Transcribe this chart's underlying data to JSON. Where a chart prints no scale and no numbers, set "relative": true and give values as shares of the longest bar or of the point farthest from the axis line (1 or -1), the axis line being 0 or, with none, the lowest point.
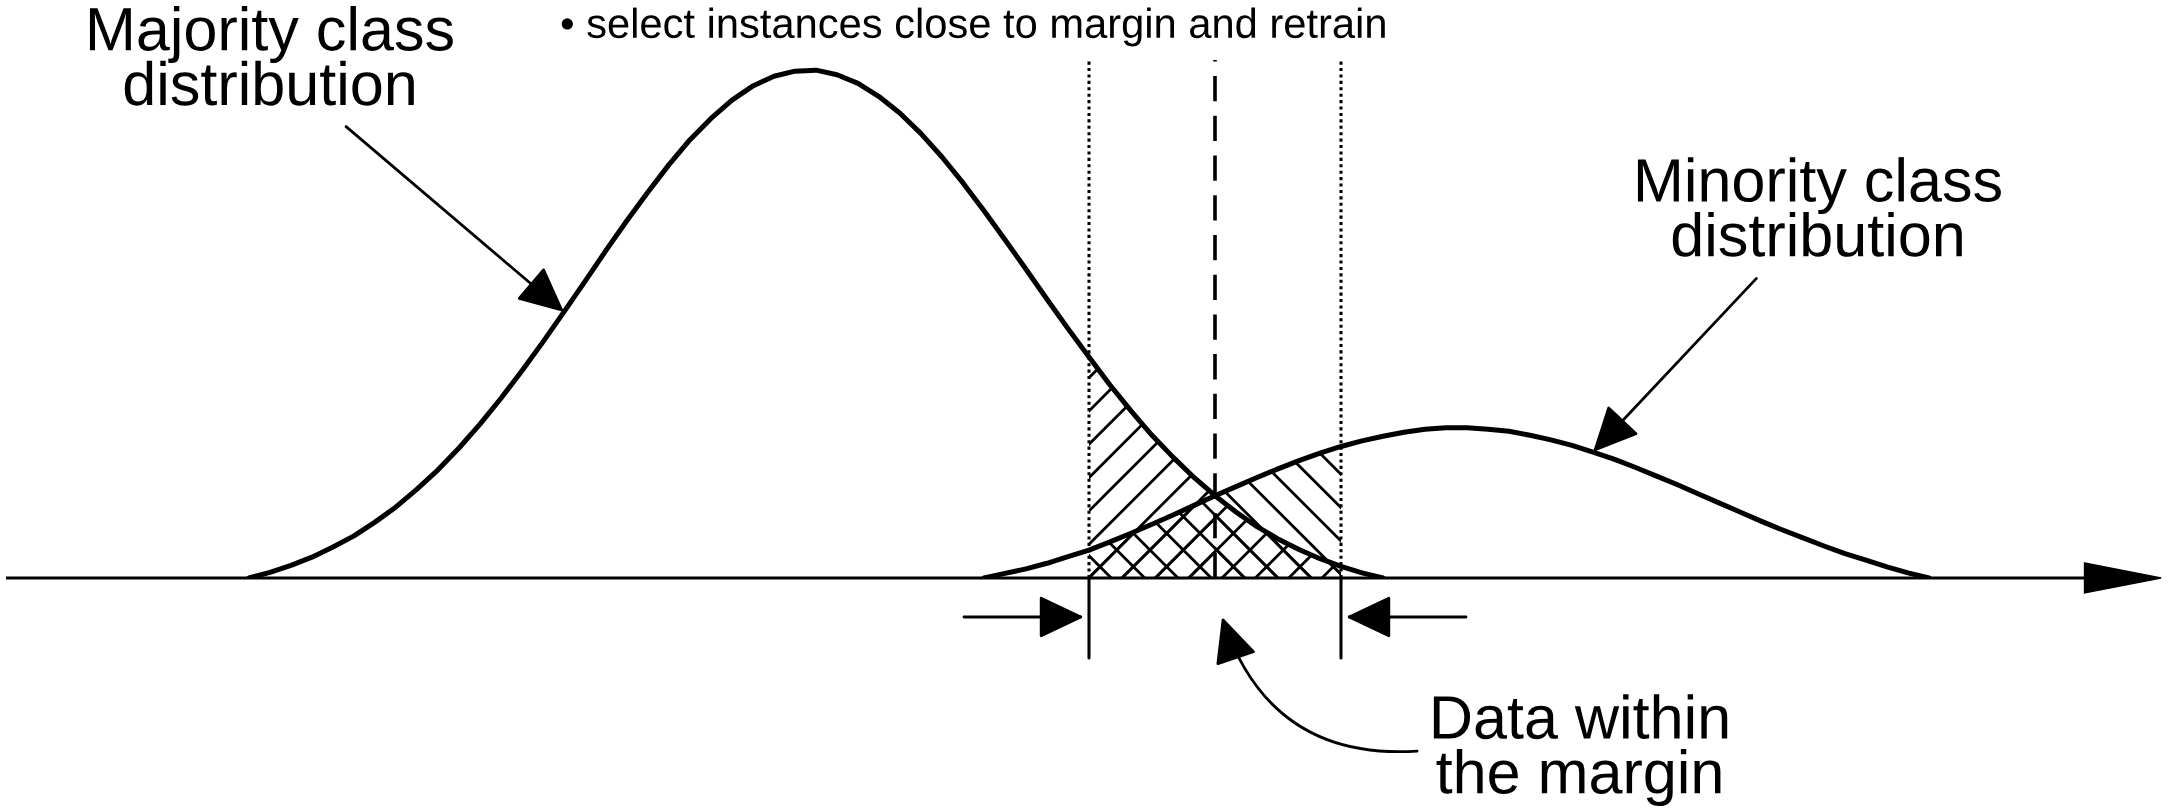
{
  "chart_data": {
    "type": "line",
    "relative": true,
    "title": "• select instances close to margin and retrain",
    "annotations": [
      "Majority class\ndistribution",
      "Minority class\ndistribution",
      "Data within\nthe margin"
    ],
    "categories": [
      null,
      null,
      null,
      null,
      null,
      null,
      null,
      null,
      null,
      null,
      null,
      null,
      null,
      null,
      null,
      null,
      null,
      null,
      null,
      null,
      null,
      null,
      null,
      null,
      null,
      null,
      null,
      null,
      null,
      null,
      null,
      null,
      null,
      null,
      null,
      null,
      null,
      null,
      null,
      null,
      null,
      null,
      null,
      null,
      null,
      null,
      null,
      null,
      null,
      null,
      null,
      null,
      null,
      null,
      null,
      null,
      null,
      null,
      null,
      null,
      null,
      null,
      null,
      null,
      null,
      null,
      null,
      null,
      null,
      null,
      null,
      null,
      null,
      null,
      null,
      null,
      null,
      null,
      null,
      null,
      null,
      null,
      null,
      null,
      null,
      null,
      null,
      null,
      null,
      null,
      null,
      null,
      null,
      null,
      null,
      null,
      null,
      null,
      null
    ],
    "series": [
      {
        "color": "#000000",
        "values": [
          null,
          null,
          null,
          null,
          null,
          null,
          null,
          null,
          null,
          null,
          null,
          0,
          0.011,
          0.025,
          0.041,
          0.061,
          0.083,
          0.11,
          0.14,
          0.175,
          0.213,
          0.256,
          0.303,
          0.354,
          0.408,
          0.465,
          0.524,
          0.584,
          0.645,
          0.704,
          0.76,
          0.814,
          0.863,
          0.905,
          0.941,
          0.969,
          0.988,
          0.998,
          1,
          0.991,
          0.974,
          0.948,
          0.915,
          0.875,
          0.829,
          0.778,
          0.723,
          0.666,
          0.608,
          0.549,
          0.491,
          0.435,
          0.38,
          0.329,
          0.281,
          0.238,
          0.198,
          0.162,
          0.13,
          0.101,
          0.077,
          0.056,
          0.038,
          0.023,
          0.01,
          0,
          null,
          null,
          null,
          null,
          null,
          null,
          null,
          null,
          null,
          null,
          null,
          null,
          null,
          null,
          null,
          null,
          null,
          null,
          null,
          null,
          null,
          null,
          null,
          null,
          null,
          null,
          null,
          null,
          null,
          null,
          null,
          null,
          null
        ]
      },
      {
        "color": "#000000",
        "values": [
          null,
          null,
          null,
          null,
          null,
          null,
          null,
          null,
          null,
          null,
          null,
          null,
          null,
          null,
          null,
          null,
          null,
          null,
          null,
          null,
          null,
          null,
          null,
          null,
          null,
          null,
          null,
          null,
          null,
          null,
          null,
          null,
          null,
          null,
          null,
          null,
          null,
          null,
          null,
          null,
          null,
          null,
          null,
          null,
          null,
          null,
          0,
          0.009,
          0.018,
          0.029,
          0.042,
          0.055,
          0.071,
          0.088,
          0.106,
          0.124,
          0.143,
          0.162,
          0.18,
          0.198,
          0.215,
          0.231,
          0.246,
          0.259,
          0.27,
          0.279,
          0.287,
          0.293,
          0.296,
          0.296,
          0.293,
          0.289,
          0.281,
          0.272,
          0.261,
          0.248,
          0.234,
          0.218,
          0.201,
          0.184,
          0.166,
          0.148,
          0.13,
          0.112,
          0.095,
          0.079,
          0.063,
          0.048,
          0.035,
          0.022,
          0.01,
          0,
          null,
          null,
          null,
          null,
          null,
          null,
          null
        ]
      },
      {
        "type": "area",
        "color": "#000000",
        "values": [
          null,
          null,
          null,
          null,
          null,
          null,
          null,
          null,
          null,
          null,
          null,
          null,
          null,
          null,
          null,
          null,
          null,
          null,
          null,
          null,
          null,
          null,
          null,
          null,
          null,
          null,
          null,
          null,
          null,
          null,
          null,
          null,
          null,
          null,
          null,
          null,
          null,
          null,
          null,
          null,
          null,
          null,
          null,
          null,
          null,
          null,
          null,
          null,
          null,
          null,
          null,
          0.435,
          0.38,
          0.329,
          0.281,
          0.238,
          0.198,
          0.162,
          null,
          null,
          null,
          null,
          null,
          null,
          null,
          null,
          null,
          null,
          null,
          null,
          null,
          null,
          null,
          null,
          null,
          null,
          null,
          null,
          null,
          null,
          null,
          null,
          null,
          null,
          null,
          null,
          null,
          null,
          null,
          null,
          null,
          null,
          null,
          null,
          null,
          null,
          null,
          null,
          null
        ]
      },
      {
        "type": "area",
        "color": "#000000",
        "values": [
          null,
          null,
          null,
          null,
          null,
          null,
          null,
          null,
          null,
          null,
          null,
          null,
          null,
          null,
          null,
          null,
          null,
          null,
          null,
          null,
          null,
          null,
          null,
          null,
          null,
          null,
          null,
          null,
          null,
          null,
          null,
          null,
          null,
          null,
          null,
          null,
          null,
          null,
          null,
          null,
          null,
          null,
          null,
          null,
          null,
          null,
          null,
          null,
          null,
          null,
          null,
          null,
          null,
          null,
          null,
          null,
          null,
          0.162,
          0.18,
          0.198,
          0.215,
          0.231,
          0.246,
          0.259,
          null,
          null,
          null,
          null,
          null,
          null,
          null,
          null,
          null,
          null,
          null,
          null,
          null,
          null,
          null,
          null,
          null,
          null,
          null,
          null,
          null,
          null,
          null,
          null,
          null,
          null,
          null,
          null,
          null,
          null,
          null,
          null,
          null,
          null,
          null
        ]
      },
      {
        "type": "area",
        "color": "#000000",
        "values": [
          null,
          null,
          null,
          null,
          null,
          null,
          null,
          null,
          null,
          null,
          null,
          null,
          null,
          null,
          null,
          null,
          null,
          null,
          null,
          null,
          null,
          null,
          null,
          null,
          null,
          null,
          null,
          null,
          null,
          null,
          null,
          null,
          null,
          null,
          null,
          null,
          null,
          null,
          null,
          null,
          null,
          null,
          null,
          null,
          null,
          null,
          null,
          null,
          null,
          null,
          null,
          0.055,
          0.071,
          0.088,
          0.106,
          0.124,
          0.143,
          0.162,
          0.13,
          0.101,
          0.077,
          0.056,
          0.038,
          0.023,
          null,
          null,
          null,
          null,
          null,
          null,
          null,
          null,
          null,
          null,
          null,
          null,
          null,
          null,
          null,
          null,
          null,
          null,
          null,
          null,
          null,
          null,
          null,
          null,
          null,
          null,
          null,
          null,
          null,
          null,
          null,
          null,
          null,
          null,
          null
        ]
      }
    ]
  }
}
